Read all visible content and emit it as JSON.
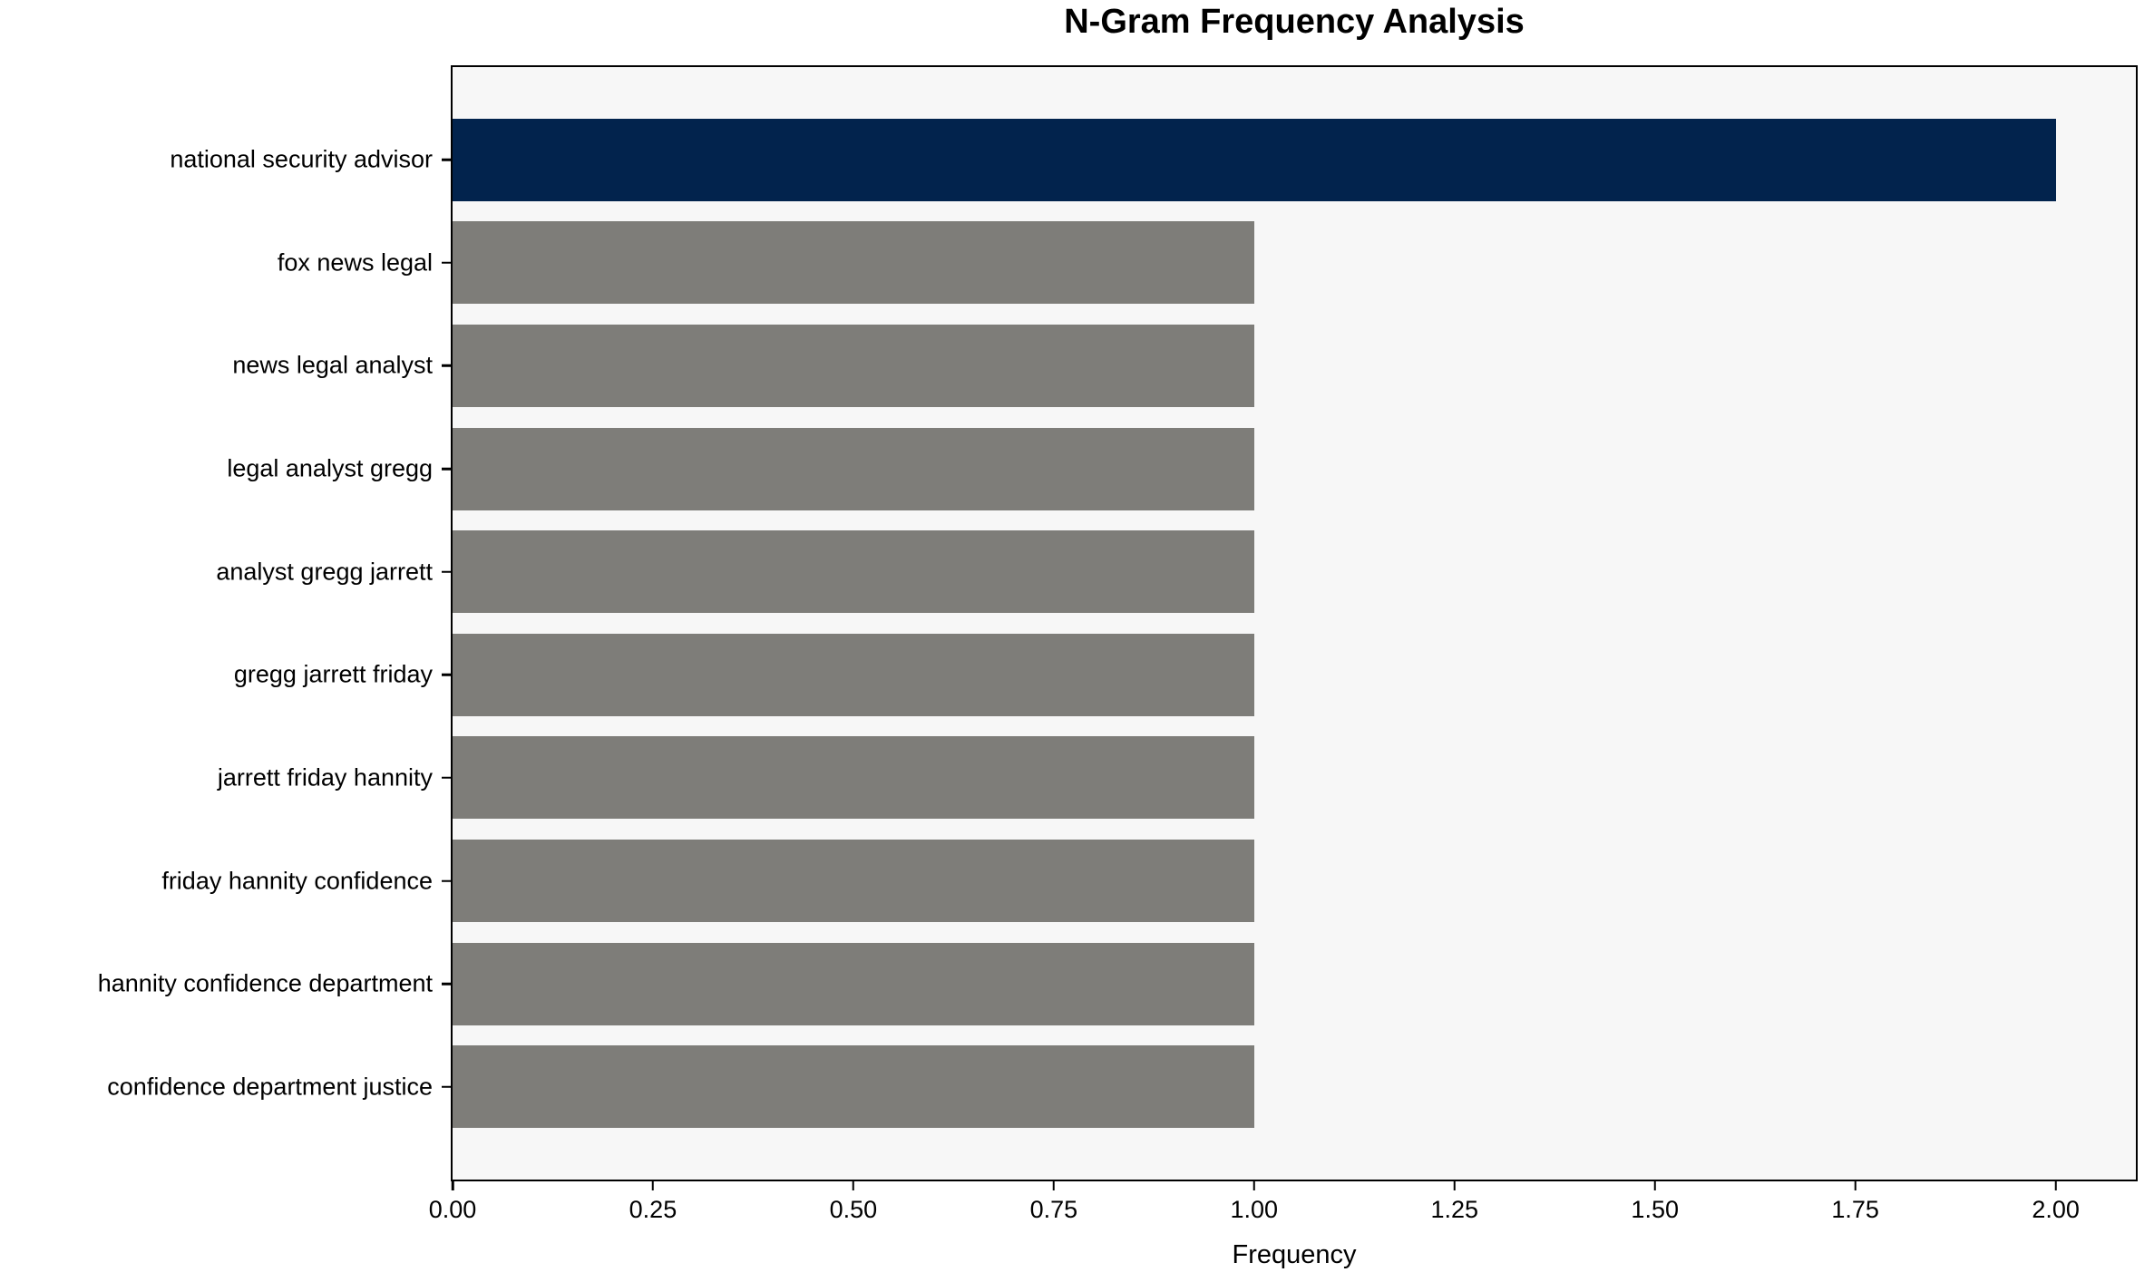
{
  "chart_data": {
    "type": "bar",
    "orientation": "horizontal",
    "title": "N-Gram Frequency Analysis",
    "xlabel": "Frequency",
    "ylabel": "",
    "categories": [
      "national security advisor",
      "fox news legal",
      "news legal analyst",
      "legal analyst gregg",
      "analyst gregg jarrett",
      "gregg jarrett friday",
      "jarrett friday hannity",
      "friday hannity confidence",
      "hannity confidence department",
      "confidence department justice"
    ],
    "values": [
      2.0,
      1.0,
      1.0,
      1.0,
      1.0,
      1.0,
      1.0,
      1.0,
      1.0,
      1.0
    ],
    "bar_colors": [
      "#02234d",
      "#7e7d79",
      "#7e7d79",
      "#7e7d79",
      "#7e7d79",
      "#7e7d79",
      "#7e7d79",
      "#7e7d79",
      "#7e7d79",
      "#7e7d79"
    ],
    "xticks": [
      0.0,
      0.25,
      0.5,
      0.75,
      1.0,
      1.25,
      1.5,
      1.75,
      2.0
    ],
    "xtick_labels": [
      "0.00",
      "0.25",
      "0.50",
      "0.75",
      "1.00",
      "1.25",
      "1.50",
      "1.75",
      "2.00"
    ],
    "xlim": [
      0,
      2.1
    ],
    "y_units_total": 10.8,
    "y_top_margin": 0.5,
    "bar_height_units": 0.8,
    "grid": false,
    "legend": null,
    "colors": {
      "highlight_bar": "#02234d",
      "default_bar": "#7e7d79",
      "plot_background": "#f7f7f7",
      "figure_background": "#ffffff",
      "spine": "#000000",
      "text": "#000000"
    }
  }
}
